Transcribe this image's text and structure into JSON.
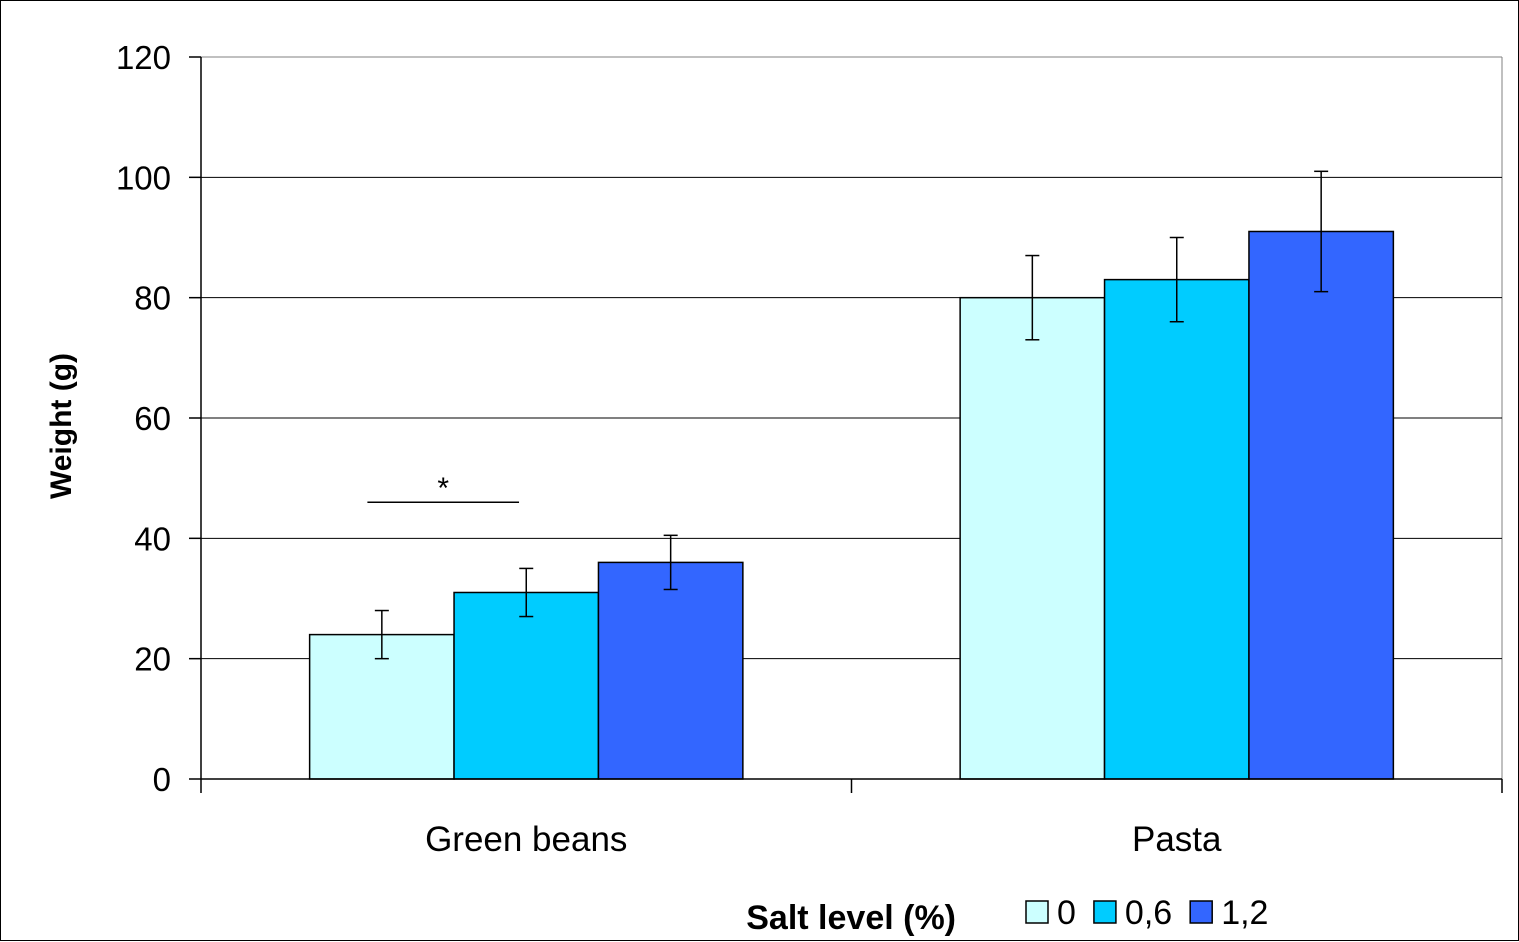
{
  "chart_data": {
    "type": "bar",
    "title": "",
    "xlabel": "",
    "ylabel": "Weight (g)",
    "ylim": [
      0,
      120
    ],
    "yticks": [
      "0",
      "20",
      "40",
      "60",
      "80",
      "100",
      "120"
    ],
    "categories": [
      "Green beans",
      "Pasta"
    ],
    "legend_title": "Salt level (%)",
    "legend_position": "bottom-right",
    "grid": true,
    "series": [
      {
        "name": "0",
        "color": "#ccffff",
        "values": [
          24,
          80
        ],
        "errors": [
          4,
          7
        ]
      },
      {
        "name": "0,6",
        "color": "#00ccff",
        "values": [
          31,
          83
        ],
        "errors": [
          4,
          7
        ]
      },
      {
        "name": "1,2",
        "color": "#3366ff",
        "values": [
          36,
          91
        ],
        "errors": [
          4.5,
          10
        ]
      }
    ],
    "annotations": [
      {
        "text": "*",
        "category": "Green beans",
        "between_series": [
          "0",
          "0,6"
        ],
        "y": 46
      }
    ]
  }
}
